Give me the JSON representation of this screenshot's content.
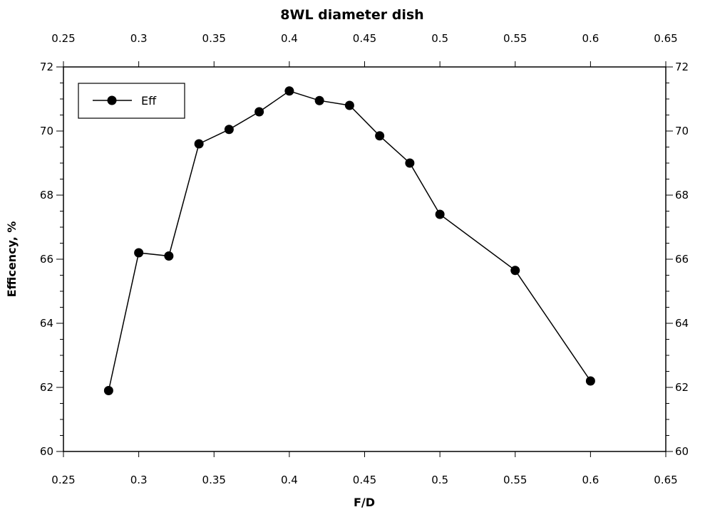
{
  "chart_data": {
    "type": "line",
    "title": "8WL diameter dish",
    "xlabel": "F/D",
    "ylabel": "Efficency, %",
    "xlim": [
      0.25,
      0.65
    ],
    "ylim": [
      60,
      72
    ],
    "x_ticks": [
      0.25,
      0.3,
      0.35,
      0.4,
      0.45,
      0.5,
      0.55,
      0.6,
      0.65
    ],
    "x_tick_labels": [
      "0.25",
      "0.3",
      "0.35",
      "0.4",
      "0.45",
      "0.5",
      "0.55",
      "0.6",
      "0.65"
    ],
    "y_ticks": [
      60,
      62,
      64,
      66,
      68,
      70,
      72
    ],
    "y_tick_labels": [
      "60",
      "62",
      "64",
      "66",
      "68",
      "70",
      "72"
    ],
    "y_minor_step": 0.5,
    "x_axis_top_mirrored": true,
    "y_axis_right_mirrored": true,
    "grid": false,
    "legend_position": "top-left",
    "series": [
      {
        "name": "Eff",
        "color": "#000000",
        "marker": "filled-circle",
        "x": [
          0.28,
          0.3,
          0.32,
          0.34,
          0.36,
          0.38,
          0.4,
          0.42,
          0.44,
          0.46,
          0.48,
          0.5,
          0.55,
          0.6
        ],
        "y": [
          61.9,
          66.2,
          66.1,
          69.6,
          70.05,
          70.6,
          71.25,
          70.95,
          70.8,
          69.85,
          69.0,
          67.4,
          65.65,
          62.2
        ]
      }
    ]
  }
}
